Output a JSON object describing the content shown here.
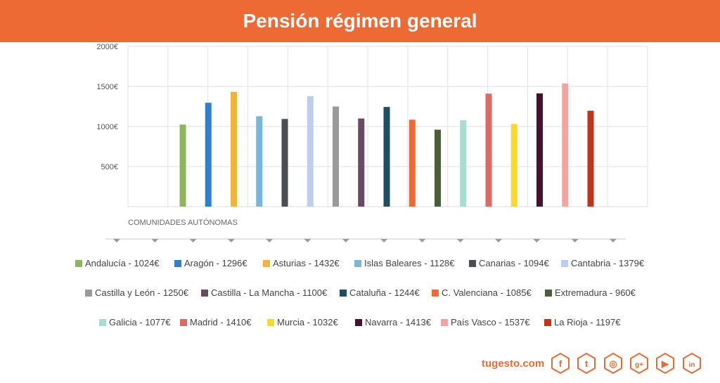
{
  "header": {
    "title": "Pensión régimen general"
  },
  "chart_data": {
    "type": "bar",
    "title": "Pensión régimen general",
    "xlabel": "COMUNIDADES AUTÓNOMAS",
    "ylabel": "",
    "ylim": [
      0,
      2000
    ],
    "yticks": [
      "500€",
      "1000€",
      "1500€",
      "2000€"
    ],
    "ytick_values": [
      500,
      1000,
      1500,
      2000
    ],
    "grid": true,
    "legend_position": "bottom",
    "categories": [
      "Andalucía",
      "Aragón",
      "Asturias",
      "Islas Baleares",
      "Canarias",
      "Cantabria",
      "Castilla y León",
      "Castilla - La Mancha",
      "Cataluña",
      "C. Valenciana",
      "Extremadura",
      "Galicia",
      "Madrid",
      "Murcia",
      "Navarra",
      "País Vasco",
      "La Rioja"
    ],
    "values": [
      1024,
      1296,
      1432,
      1128,
      1094,
      1379,
      1250,
      1100,
      1244,
      1085,
      960,
      1077,
      1410,
      1032,
      1413,
      1537,
      1197
    ],
    "colors": [
      "#8db65a",
      "#2f7fcb",
      "#f0b43a",
      "#7bb6d9",
      "#4a4f55",
      "#b9cff0",
      "#9a9a9a",
      "#6a4a63",
      "#1f4e62",
      "#ee6a35",
      "#4b5e3b",
      "#a7dcd2",
      "#e06a61",
      "#fcd82d",
      "#4a1030",
      "#f5a39c",
      "#c0361b"
    ],
    "legend_labels": [
      "Andalucía - 1024€",
      "Aragón - 1296€",
      "Asturias - 1432€",
      "Islas Baleares - 1128€",
      "Canarias - 1094€",
      "Cantabria - 1379€",
      "Castilla y León - 1250€",
      "Castilla - La Mancha - 1100€",
      "Cataluña - 1244€",
      "C. Valenciana - 1085€",
      "Extremadura - 960€",
      "Galicia - 1077€",
      "Madrid - 1410€",
      "Murcia - 1032€",
      "Navarra - 1413€",
      "País Vasco - 1537€",
      "La Rioja - 1197€"
    ]
  },
  "footer": {
    "brand": "tugesto.com",
    "social_icons": [
      "facebook-icon",
      "twitter-icon",
      "instagram-icon",
      "google-plus-icon",
      "youtube-icon",
      "linkedin-icon"
    ],
    "accent": "#ee6a35"
  }
}
